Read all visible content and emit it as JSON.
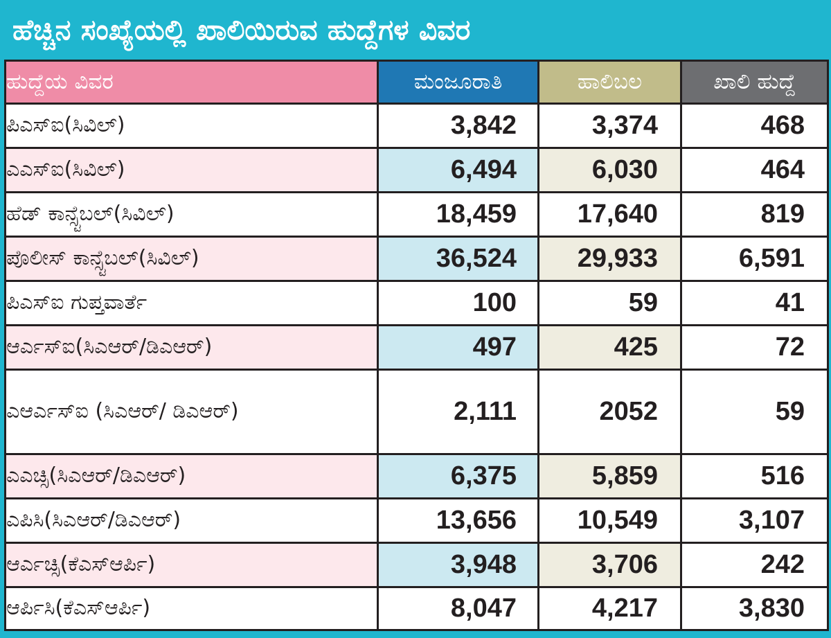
{
  "title": "ಹೆಚ್ಚಿನ ಸಂಖ್ಯೆಯಲ್ಲಿ ಖಾಲಿಯಿರುವ ಹುದ್ದೆಗಳ ವಿವರ",
  "colors": {
    "title_bg": "#1fb6cf",
    "header_name_bg": "#ef8ca7",
    "header_sanctioned_bg": "#1f78b4",
    "header_working_bg": "#c1bc8a",
    "header_vacant_bg": "#6d6e71",
    "shade_name": "#fde8ec",
    "shade_sanctioned": "#cce9f1",
    "shade_working": "#efede0"
  },
  "chart_data": {
    "type": "table",
    "title": "ಹೆಚ್ಚಿನ ಸಂಖ್ಯೆಯಲ್ಲಿ ಖಾಲಿಯಿರುವ ಹುದ್ದೆಗಳ ವಿವರ",
    "columns": [
      "ಹುದ್ದೆಯ ವಿವರ",
      "ಮಂಜೂರಾತಿ",
      "ಹಾಲಿಬಲ",
      "ಖಾಲಿ ಹುದ್ದೆ"
    ],
    "rows": [
      {
        "post": "ಪಿಎಸ್ಐ(ಸಿವಿಲ್)",
        "sanctioned": "3,842",
        "working": "3,374",
        "vacant": "468"
      },
      {
        "post": "ಎಎಸ್ಐ(ಸಿವಿಲ್)",
        "sanctioned": "6,494",
        "working": "6,030",
        "vacant": "464"
      },
      {
        "post": "ಹೆಡ್ ಕಾನ್ಸ್ಟೆಬಲ್(ಸಿವಿಲ್)",
        "sanctioned": "18,459",
        "working": "17,640",
        "vacant": "819"
      },
      {
        "post": "ಪೊಲೀಸ್ ಕಾನ್ಸ್ಟೆಬಲ್(ಸಿವಿಲ್)",
        "sanctioned": "36,524",
        "working": "29,933",
        "vacant": "6,591"
      },
      {
        "post": "ಪಿಎಸ್ಐ ಗುಪ್ತವಾರ್ತೆ",
        "sanctioned": "100",
        "working": "59",
        "vacant": "41"
      },
      {
        "post": "ಆರ್ಎಸ್ಐ(ಸಿಎಆರ್/ಡಿಎಆರ್)",
        "sanctioned": "497",
        "working": "425",
        "vacant": "72"
      },
      {
        "post": "ಎಆರ್ಎಸ್ಐ (ಸಿಎಆರ್/ ಡಿಎಆರ್)",
        "sanctioned": "2,111",
        "working": "2052",
        "vacant": "59"
      },
      {
        "post": "ಎಎಚ್ಸಿ(ಸಿಎಆರ್/ಡಿಎಆರ್)",
        "sanctioned": "6,375",
        "working": "5,859",
        "vacant": "516"
      },
      {
        "post": "ಎಪಿಸಿ(ಸಿಎಆರ್/ಡಿಎಆರ್)",
        "sanctioned": "13,656",
        "working": "10,549",
        "vacant": "3,107"
      },
      {
        "post": "ಆರ್ಎಚ್ಸಿ(ಕೆಎಸ್ಆರ್ಪಿ)",
        "sanctioned": "3,948",
        "working": "3,706",
        "vacant": "242"
      },
      {
        "post": "ಆರ್ಪಿಸಿ(ಕೆಎಸ್ಆರ್ಪಿ)",
        "sanctioned": "8,047",
        "working": "4,217",
        "vacant": "3,830"
      }
    ]
  }
}
